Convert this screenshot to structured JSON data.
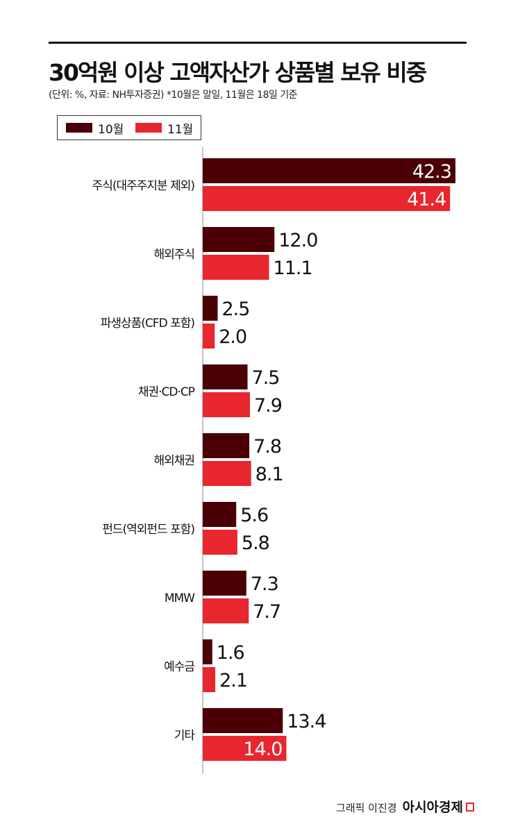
{
  "header": {
    "title": "30억원 이상 고액자산가 상품별 보유 비중",
    "subtitle": "(단위: %, 자료: NH투자증권) *10월은 말일, 11월은 18일 기준"
  },
  "legend": [
    {
      "label": "10월",
      "color": "#4a0004"
    },
    {
      "label": "11월",
      "color": "#e8262d"
    }
  ],
  "chart_data": {
    "type": "bar",
    "orientation": "horizontal",
    "categories": [
      "주식(대주주지분 제외)",
      "해외주식",
      "파생상품(CFD 포함)",
      "채권·CD·CP",
      "해외채권",
      "펀드(역외펀드 포함)",
      "MMW",
      "예수금",
      "기타"
    ],
    "series": [
      {
        "name": "10월",
        "color": "#4a0004",
        "values": [
          42.3,
          12.0,
          2.5,
          7.5,
          7.8,
          5.6,
          7.3,
          1.6,
          13.4
        ],
        "labels": [
          "42.3",
          "12.0",
          "2.5",
          "7.5",
          "7.8",
          "5.6",
          "7.3",
          "1.6",
          "13.4"
        ]
      },
      {
        "name": "11월",
        "color": "#e8262d",
        "values": [
          41.4,
          11.1,
          2.0,
          7.9,
          8.1,
          5.8,
          7.7,
          2.1,
          14.0
        ],
        "labels": [
          "41.4",
          "11.1",
          "2.0",
          "7.9",
          "8.1",
          "5.8",
          "7.7",
          "2.1",
          "14.0"
        ]
      }
    ],
    "xlim": [
      0,
      42.3
    ],
    "grid": false,
    "legend_position": "top-left"
  },
  "footer": {
    "credit": "그래픽 이진경",
    "brand": "아시아경제"
  }
}
